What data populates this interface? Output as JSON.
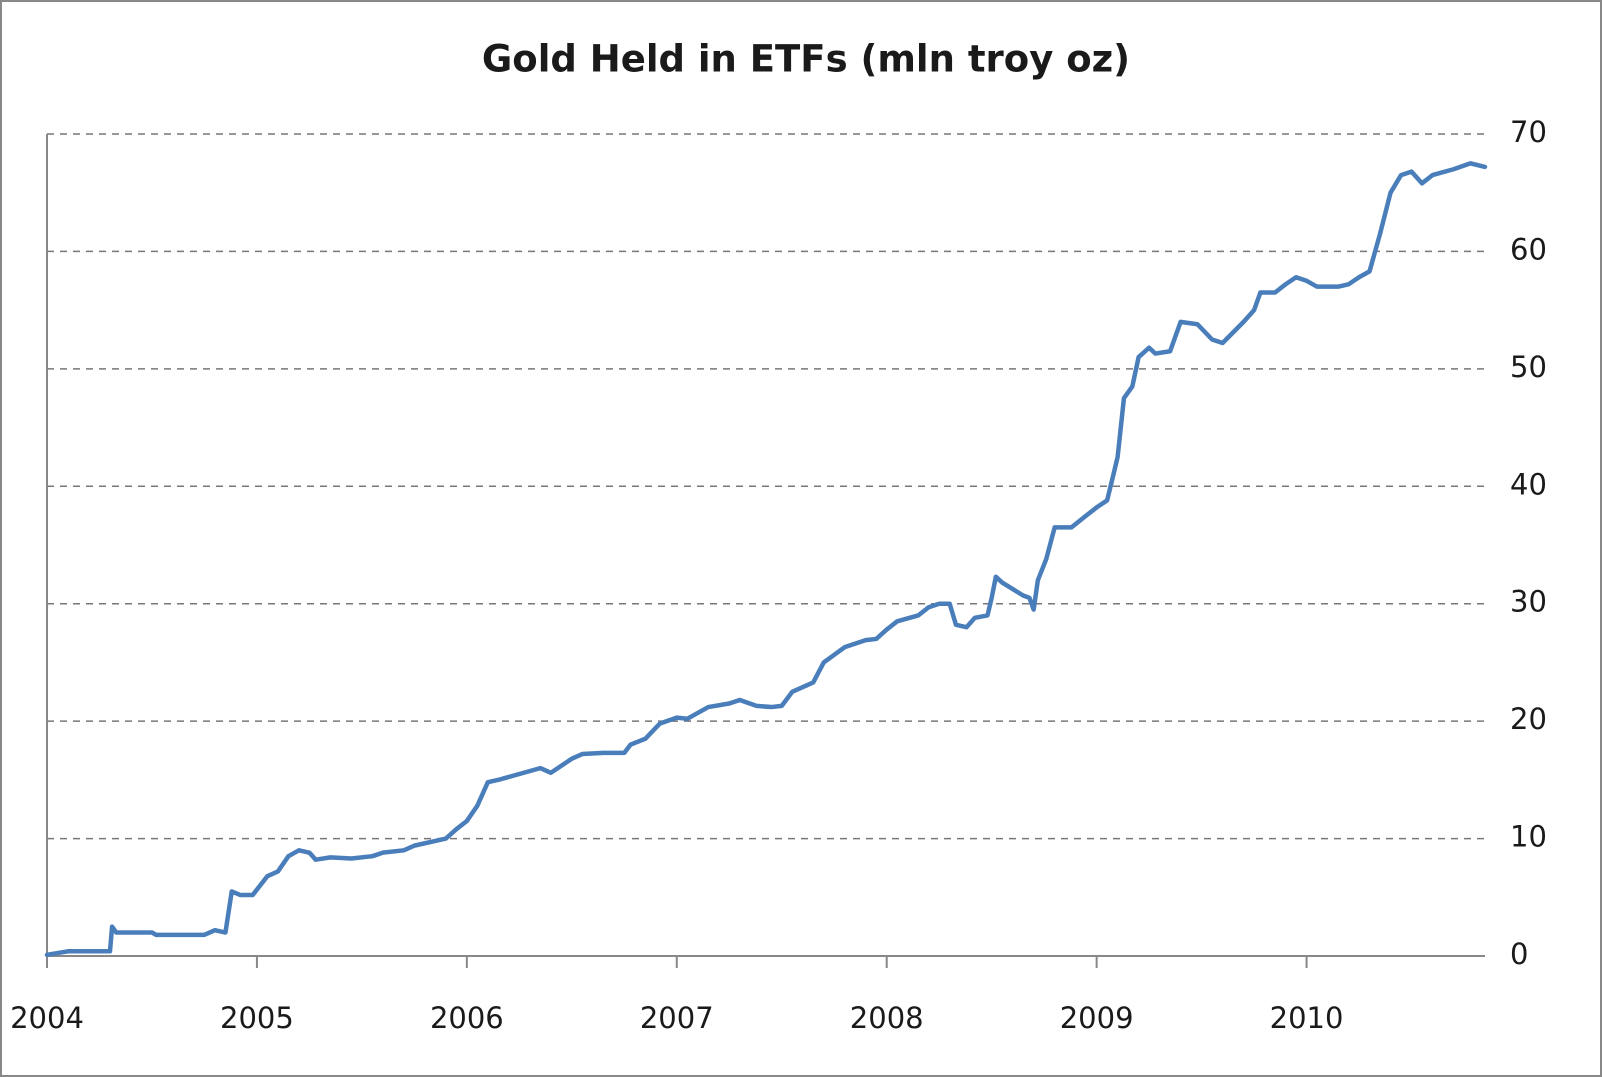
{
  "chart_data": {
    "type": "line",
    "title": "Gold Held in ETFs (mln troy oz)",
    "x": [
      2004.0,
      2004.1,
      2004.3,
      2004.31,
      2004.33,
      2004.5,
      2004.52,
      2004.75,
      2004.8,
      2004.85,
      2004.88,
      2004.92,
      2004.98,
      2005.05,
      2005.1,
      2005.15,
      2005.2,
      2005.25,
      2005.28,
      2005.35,
      2005.45,
      2005.55,
      2005.6,
      2005.7,
      2005.75,
      2005.85,
      2005.9,
      2005.95,
      2006.0,
      2006.05,
      2006.1,
      2006.15,
      2006.25,
      2006.35,
      2006.4,
      2006.45,
      2006.5,
      2006.55,
      2006.65,
      2006.75,
      2006.78,
      2006.85,
      2006.92,
      2007.0,
      2007.05,
      2007.15,
      2007.25,
      2007.3,
      2007.38,
      2007.45,
      2007.5,
      2007.55,
      2007.65,
      2007.7,
      2007.8,
      2007.9,
      2007.95,
      2008.0,
      2008.05,
      2008.15,
      2008.2,
      2008.25,
      2008.3,
      2008.33,
      2008.38,
      2008.42,
      2008.48,
      2008.5,
      2008.52,
      2008.55,
      2008.65,
      2008.68,
      2008.7,
      2008.72,
      2008.76,
      2008.8,
      2008.88,
      2008.95,
      2009.0,
      2009.05,
      2009.08,
      2009.1,
      2009.13,
      2009.17,
      2009.2,
      2009.25,
      2009.28,
      2009.35,
      2009.4,
      2009.48,
      2009.55,
      2009.6,
      2009.7,
      2009.75,
      2009.78,
      2009.85,
      2009.9,
      2009.95,
      2010.0,
      2010.05,
      2010.15,
      2010.2,
      2010.25,
      2010.3,
      2010.35,
      2010.4,
      2010.45,
      2010.5,
      2010.55,
      2010.6,
      2010.7,
      2010.78,
      2010.85
    ],
    "values": [
      0.1,
      0.4,
      0.4,
      2.5,
      2.0,
      2.0,
      1.8,
      1.8,
      2.2,
      2.0,
      5.5,
      5.2,
      5.2,
      6.8,
      7.2,
      8.5,
      9.0,
      8.8,
      8.2,
      8.4,
      8.3,
      8.5,
      8.8,
      9.0,
      9.4,
      9.8,
      10.0,
      10.8,
      11.5,
      12.8,
      14.8,
      15.0,
      15.5,
      16.0,
      15.6,
      16.2,
      16.8,
      17.2,
      17.3,
      17.3,
      18.0,
      18.5,
      19.8,
      20.3,
      20.2,
      21.2,
      21.5,
      21.8,
      21.3,
      21.2,
      21.3,
      22.5,
      23.3,
      25.0,
      26.3,
      26.9,
      27.0,
      27.8,
      28.5,
      29.0,
      29.7,
      30.0,
      30.0,
      28.2,
      28.0,
      28.8,
      29.0,
      30.5,
      32.3,
      31.8,
      30.7,
      30.5,
      29.5,
      32.0,
      33.8,
      36.5,
      36.5,
      37.5,
      38.2,
      38.8,
      41.0,
      42.5,
      47.5,
      48.5,
      51.0,
      51.8,
      51.3,
      51.5,
      54.0,
      53.8,
      52.5,
      52.2,
      54.0,
      55.0,
      56.5,
      56.5,
      57.2,
      57.8,
      57.5,
      57.0,
      57.0,
      57.2,
      57.8,
      58.3,
      61.5,
      65.0,
      66.5,
      66.8,
      65.8,
      66.5,
      67.0,
      67.5,
      67.2
    ],
    "color": "#4a7ebb",
    "xlim": [
      2004,
      2010.85
    ],
    "xticks": [
      2004,
      2005,
      2006,
      2007,
      2008,
      2009,
      2010
    ],
    "ylim": [
      0,
      70
    ],
    "yticks": [
      0,
      10,
      20,
      30,
      40,
      50,
      60,
      70
    ],
    "grid": true,
    "y_axis_side": "right"
  }
}
